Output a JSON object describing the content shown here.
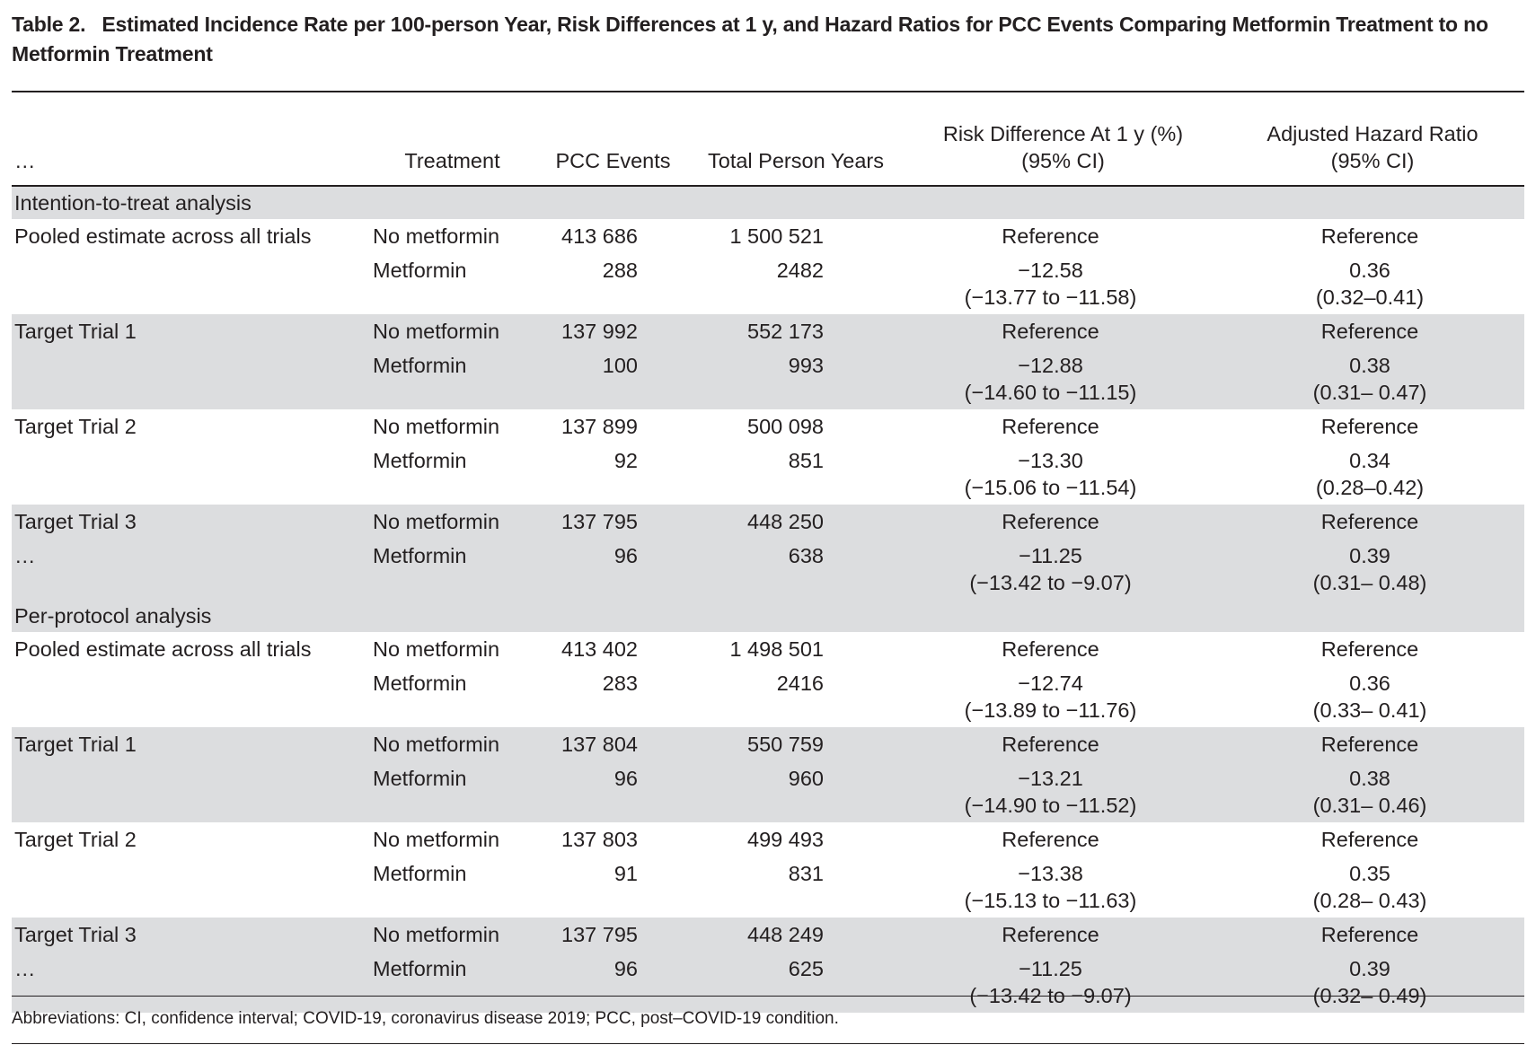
{
  "table": {
    "label": "Table 2.",
    "title": "Estimated Incidence Rate per 100-person Year, Risk Differences at 1 y, and Hazard Ratios for PCC Events Comparing Metformin Treatment to no Metformin Treatment",
    "columns": [
      "…",
      "Treatment",
      "PCC Events",
      "Total Person Years",
      "Risk Difference At 1 y (%)",
      "(95% CI)",
      "Adjusted Hazard Ratio",
      "(95% CI)"
    ],
    "sections": [
      {
        "name": "Intention-to-treat analysis",
        "groups": [
          {
            "label": "Pooled estimate across all trials",
            "label2": "",
            "r1": {
              "treatment": "No metformin",
              "events": "413 686",
              "years": "1 500 521",
              "rd": "Reference",
              "hr": "Reference"
            },
            "r2": {
              "treatment": "Metformin",
              "events": "288",
              "years": "2482",
              "rd": "−12.58",
              "rd_ci": "(−13.77 to −11.58)",
              "hr": "0.36",
              "hr_ci": "(0.32–0.41)"
            }
          },
          {
            "label": "Target Trial 1",
            "label2": "",
            "r1": {
              "treatment": "No metformin",
              "events": "137 992",
              "years": "552 173",
              "rd": "Reference",
              "hr": "Reference"
            },
            "r2": {
              "treatment": "Metformin",
              "events": "100",
              "years": "993",
              "rd": "−12.88",
              "rd_ci": "(−14.60 to −11.15)",
              "hr": "0.38",
              "hr_ci": "(0.31– 0.47)"
            }
          },
          {
            "label": "Target Trial 2",
            "label2": "",
            "r1": {
              "treatment": "No metformin",
              "events": "137 899",
              "years": "500 098",
              "rd": "Reference",
              "hr": "Reference"
            },
            "r2": {
              "treatment": "Metformin",
              "events": "92",
              "years": "851",
              "rd": "−13.30",
              "rd_ci": "(−15.06 to −11.54)",
              "hr": "0.34",
              "hr_ci": "(0.28–0.42)"
            }
          },
          {
            "label": "Target Trial 3",
            "label2": "…",
            "r1": {
              "treatment": "No metformin",
              "events": "137 795",
              "years": "448 250",
              "rd": "Reference",
              "hr": "Reference"
            },
            "r2": {
              "treatment": "Metformin",
              "events": "96",
              "years": "638",
              "rd": "−11.25",
              "rd_ci": "(−13.42 to −9.07)",
              "hr": "0.39",
              "hr_ci": "(0.31– 0.48)"
            }
          }
        ]
      },
      {
        "name": "Per-protocol analysis",
        "groups": [
          {
            "label": "Pooled estimate across all trials",
            "label2": "",
            "r1": {
              "treatment": "No metformin",
              "events": "413 402",
              "years": "1 498 501",
              "rd": "Reference",
              "hr": "Reference"
            },
            "r2": {
              "treatment": "Metformin",
              "events": "283",
              "years": "2416",
              "rd": "−12.74",
              "rd_ci": "(−13.89 to −11.76)",
              "hr": "0.36",
              "hr_ci": "(0.33– 0.41)"
            }
          },
          {
            "label": "Target Trial 1",
            "label2": "",
            "r1": {
              "treatment": "No metformin",
              "events": "137 804",
              "years": "550 759",
              "rd": "Reference",
              "hr": "Reference"
            },
            "r2": {
              "treatment": "Metformin",
              "events": "96",
              "years": "960",
              "rd": "−13.21",
              "rd_ci": "(−14.90 to −11.52)",
              "hr": "0.38",
              "hr_ci": "(0.31– 0.46)"
            }
          },
          {
            "label": "Target Trial 2",
            "label2": "",
            "r1": {
              "treatment": "No metformin",
              "events": "137 803",
              "years": "499 493",
              "rd": "Reference",
              "hr": "Reference"
            },
            "r2": {
              "treatment": "Metformin",
              "events": "91",
              "years": "831",
              "rd": "−13.38",
              "rd_ci": "(−15.13 to −11.63)",
              "hr": "0.35",
              "hr_ci": "(0.28– 0.43)"
            }
          },
          {
            "label": "Target Trial 3",
            "label2": "…",
            "r1": {
              "treatment": "No metformin",
              "events": "137 795",
              "years": "448 249",
              "rd": "Reference",
              "hr": "Reference"
            },
            "r2": {
              "treatment": "Metformin",
              "events": "96",
              "years": "625",
              "rd": "−11.25",
              "rd_ci": "(−13.42 to −9.07)",
              "hr": "0.39",
              "hr_ci": "(0.32– 0.49)"
            }
          }
        ]
      }
    ],
    "footnote": "Abbreviations: CI, confidence interval; COVID-19, coronavirus disease 2019; PCC, post–COVID-19 condition."
  }
}
